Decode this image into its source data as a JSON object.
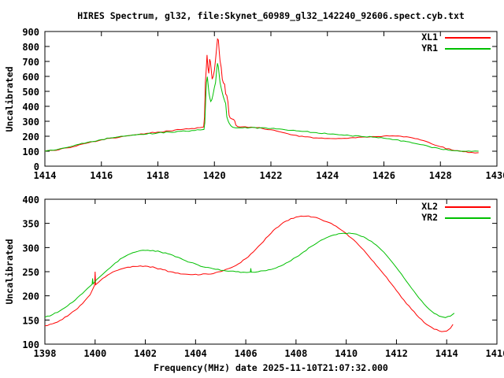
{
  "title": "HIRES Spectrum, gl32, file:Skynet_60989_gl32_142240_92606.spect.cyb.txt",
  "colors": {
    "background": "#ffffff",
    "frame": "#000000",
    "xl": "#ff0000",
    "yr": "#00c000"
  },
  "chart_data": [
    {
      "type": "line",
      "title": "",
      "xlabel": "",
      "ylabel": "Uncalibrated",
      "xlim": [
        1414,
        1430
      ],
      "ylim": [
        0,
        900
      ],
      "xticks": [
        1414,
        1416,
        1418,
        1420,
        1422,
        1424,
        1426,
        1428,
        1430
      ],
      "yticks": [
        0,
        100,
        200,
        300,
        400,
        500,
        600,
        700,
        800,
        900
      ],
      "grid": false,
      "legend_position": "top-right",
      "series": [
        {
          "name": "XL1",
          "color": "#ff0000",
          "points": [
            [
              1414.0,
              100
            ],
            [
              1414.4,
              106
            ],
            [
              1414.8,
              122
            ],
            [
              1415.2,
              142
            ],
            [
              1415.6,
              160
            ],
            [
              1416.0,
              176
            ],
            [
              1416.4,
              189
            ],
            [
              1416.8,
              200
            ],
            [
              1417.2,
              210
            ],
            [
              1417.6,
              219
            ],
            [
              1418.0,
              228
            ],
            [
              1418.4,
              236
            ],
            [
              1418.8,
              244
            ],
            [
              1419.2,
              252
            ],
            [
              1419.5,
              258
            ],
            [
              1419.62,
              262
            ],
            [
              1419.65,
              330
            ],
            [
              1419.68,
              560
            ],
            [
              1419.71,
              640
            ],
            [
              1419.74,
              743
            ],
            [
              1419.77,
              660
            ],
            [
              1419.8,
              620
            ],
            [
              1419.83,
              715
            ],
            [
              1419.86,
              698
            ],
            [
              1419.89,
              640
            ],
            [
              1419.92,
              582
            ],
            [
              1419.96,
              600
            ],
            [
              1420.0,
              642
            ],
            [
              1420.04,
              712
            ],
            [
              1420.08,
              790
            ],
            [
              1420.11,
              850
            ],
            [
              1420.14,
              843
            ],
            [
              1420.17,
              772
            ],
            [
              1420.2,
              705
            ],
            [
              1420.24,
              660
            ],
            [
              1420.28,
              580
            ],
            [
              1420.32,
              556
            ],
            [
              1420.36,
              548
            ],
            [
              1420.4,
              482
            ],
            [
              1420.44,
              472
            ],
            [
              1420.48,
              428
            ],
            [
              1420.52,
              340
            ],
            [
              1420.56,
              322
            ],
            [
              1420.62,
              316
            ],
            [
              1420.68,
              312
            ],
            [
              1420.72,
              302
            ],
            [
              1420.76,
              274
            ],
            [
              1420.82,
              264
            ],
            [
              1421.0,
              263
            ],
            [
              1421.3,
              261
            ],
            [
              1421.6,
              258
            ],
            [
              1422.0,
              243
            ],
            [
              1422.4,
              226
            ],
            [
              1422.8,
              208
            ],
            [
              1423.2,
              196
            ],
            [
              1423.6,
              189
            ],
            [
              1424.0,
              186
            ],
            [
              1424.4,
              186
            ],
            [
              1424.8,
              189
            ],
            [
              1425.2,
              194
            ],
            [
              1425.6,
              198
            ],
            [
              1426.0,
              201
            ],
            [
              1426.4,
              201
            ],
            [
              1426.8,
              197
            ],
            [
              1427.2,
              182
            ],
            [
              1427.6,
              158
            ],
            [
              1428.0,
              130
            ],
            [
              1428.4,
              109
            ],
            [
              1428.8,
              97
            ],
            [
              1429.1,
              92
            ],
            [
              1429.35,
              90
            ]
          ]
        },
        {
          "name": "YR1",
          "color": "#00c000",
          "points": [
            [
              1414.0,
              100
            ],
            [
              1414.4,
              109
            ],
            [
              1414.8,
              126
            ],
            [
              1415.2,
              146
            ],
            [
              1415.6,
              163
            ],
            [
              1416.0,
              178
            ],
            [
              1416.4,
              190
            ],
            [
              1416.8,
              200
            ],
            [
              1417.2,
              208
            ],
            [
              1417.6,
              215
            ],
            [
              1418.0,
              222
            ],
            [
              1418.4,
              228
            ],
            [
              1418.8,
              233
            ],
            [
              1419.2,
              238
            ],
            [
              1419.5,
              242
            ],
            [
              1419.63,
              245
            ],
            [
              1419.66,
              290
            ],
            [
              1419.69,
              430
            ],
            [
              1419.72,
              560
            ],
            [
              1419.75,
              598
            ],
            [
              1419.78,
              540
            ],
            [
              1419.81,
              488
            ],
            [
              1419.84,
              455
            ],
            [
              1419.87,
              432
            ],
            [
              1419.91,
              444
            ],
            [
              1419.95,
              478
            ],
            [
              1420.0,
              528
            ],
            [
              1420.04,
              558
            ],
            [
              1420.08,
              640
            ],
            [
              1420.11,
              688
            ],
            [
              1420.14,
              662
            ],
            [
              1420.17,
              612
            ],
            [
              1420.2,
              560
            ],
            [
              1420.24,
              522
            ],
            [
              1420.28,
              490
            ],
            [
              1420.32,
              462
            ],
            [
              1420.36,
              438
            ],
            [
              1420.4,
              418
            ],
            [
              1420.44,
              330
            ],
            [
              1420.48,
              305
            ],
            [
              1420.52,
              288
            ],
            [
              1420.58,
              270
            ],
            [
              1420.65,
              260
            ],
            [
              1420.75,
              256
            ],
            [
              1421.0,
              256
            ],
            [
              1421.6,
              256
            ],
            [
              1422.0,
              252
            ],
            [
              1422.4,
              247
            ],
            [
              1422.8,
              240
            ],
            [
              1423.2,
              232
            ],
            [
              1423.6,
              224
            ],
            [
              1424.0,
              216
            ],
            [
              1424.4,
              210
            ],
            [
              1424.8,
              204
            ],
            [
              1425.2,
              199
            ],
            [
              1425.6,
              194
            ],
            [
              1426.0,
              187
            ],
            [
              1426.4,
              177
            ],
            [
              1426.8,
              164
            ],
            [
              1427.2,
              148
            ],
            [
              1427.6,
              131
            ],
            [
              1428.0,
              115
            ],
            [
              1428.4,
              105
            ],
            [
              1428.8,
              100
            ],
            [
              1429.1,
              99
            ],
            [
              1429.35,
              100
            ]
          ]
        }
      ]
    },
    {
      "type": "line",
      "title": "",
      "xlabel": "Frequency(MHz) date 2025-11-10T21:07:32.000",
      "ylabel": "Uncalibrated",
      "xlim": [
        1398,
        1416
      ],
      "ylim": [
        100,
        400
      ],
      "xticks": [
        1398,
        1400,
        1402,
        1404,
        1406,
        1408,
        1410,
        1412,
        1414,
        1416
      ],
      "yticks": [
        100,
        150,
        200,
        250,
        300,
        350,
        400
      ],
      "grid": false,
      "legend_position": "top-right",
      "series": [
        {
          "name": "XL2",
          "color": "#ff0000",
          "points": [
            [
              1398.0,
              138
            ],
            [
              1398.3,
              142
            ],
            [
              1398.6,
              149
            ],
            [
              1398.9,
              158
            ],
            [
              1399.2,
              170
            ],
            [
              1399.5,
              184
            ],
            [
              1399.8,
              202
            ],
            [
              1399.98,
              222
            ],
            [
              1400.0,
              250
            ],
            [
              1400.02,
              223
            ],
            [
              1400.3,
              236
            ],
            [
              1400.6,
              246
            ],
            [
              1400.9,
              253
            ],
            [
              1401.2,
              258
            ],
            [
              1401.5,
              261
            ],
            [
              1401.8,
              262
            ],
            [
              1402.1,
              261
            ],
            [
              1402.4,
              258
            ],
            [
              1402.7,
              254
            ],
            [
              1403.0,
              250
            ],
            [
              1403.3,
              247
            ],
            [
              1403.6,
              245
            ],
            [
              1403.9,
              244
            ],
            [
              1404.2,
              244
            ],
            [
              1404.5,
              245
            ],
            [
              1404.8,
              248
            ],
            [
              1405.1,
              252
            ],
            [
              1405.4,
              258
            ],
            [
              1405.7,
              266
            ],
            [
              1406.0,
              277
            ],
            [
              1406.3,
              291
            ],
            [
              1406.6,
              307
            ],
            [
              1406.9,
              324
            ],
            [
              1407.2,
              340
            ],
            [
              1407.5,
              352
            ],
            [
              1407.8,
              360
            ],
            [
              1408.1,
              364
            ],
            [
              1408.4,
              365
            ],
            [
              1408.7,
              363
            ],
            [
              1409.0,
              358
            ],
            [
              1409.3,
              352
            ],
            [
              1409.6,
              344
            ],
            [
              1409.9,
              333
            ],
            [
              1410.2,
              320
            ],
            [
              1410.5,
              305
            ],
            [
              1410.8,
              288
            ],
            [
              1411.1,
              270
            ],
            [
              1411.4,
              251
            ],
            [
              1411.7,
              231
            ],
            [
              1412.0,
              211
            ],
            [
              1412.3,
              191
            ],
            [
              1412.6,
              172
            ],
            [
              1412.9,
              155
            ],
            [
              1413.2,
              141
            ],
            [
              1413.5,
              131
            ],
            [
              1413.8,
              126
            ],
            [
              1414.0,
              127
            ],
            [
              1414.15,
              133
            ],
            [
              1414.25,
              141
            ]
          ]
        },
        {
          "name": "YR2",
          "color": "#00c000",
          "points": [
            [
              1398.0,
              156
            ],
            [
              1398.3,
              161
            ],
            [
              1398.6,
              169
            ],
            [
              1398.9,
              179
            ],
            [
              1399.2,
              191
            ],
            [
              1399.5,
              205
            ],
            [
              1399.8,
              220
            ],
            [
              1399.88,
              224
            ],
            [
              1399.9,
              236
            ],
            [
              1399.92,
              225
            ],
            [
              1400.2,
              240
            ],
            [
              1400.5,
              254
            ],
            [
              1400.8,
              268
            ],
            [
              1401.1,
              279
            ],
            [
              1401.4,
              287
            ],
            [
              1401.7,
              292
            ],
            [
              1402.0,
              294
            ],
            [
              1402.3,
              294
            ],
            [
              1402.6,
              291
            ],
            [
              1402.9,
              287
            ],
            [
              1403.2,
              281
            ],
            [
              1403.5,
              275
            ],
            [
              1403.8,
              269
            ],
            [
              1404.1,
              264
            ],
            [
              1404.4,
              259
            ],
            [
              1404.7,
              256
            ],
            [
              1405.0,
              253
            ],
            [
              1405.3,
              251
            ],
            [
              1405.6,
              250
            ],
            [
              1405.9,
              249
            ],
            [
              1406.18,
              249
            ],
            [
              1406.2,
              257
            ],
            [
              1406.22,
              249
            ],
            [
              1406.5,
              250
            ],
            [
              1406.8,
              252
            ],
            [
              1407.1,
              256
            ],
            [
              1407.4,
              262
            ],
            [
              1407.7,
              270
            ],
            [
              1408.0,
              280
            ],
            [
              1408.3,
              291
            ],
            [
              1408.6,
              302
            ],
            [
              1408.9,
              312
            ],
            [
              1409.2,
              320
            ],
            [
              1409.5,
              326
            ],
            [
              1409.8,
              329
            ],
            [
              1410.1,
              330
            ],
            [
              1410.4,
              328
            ],
            [
              1410.7,
              322
            ],
            [
              1411.0,
              313
            ],
            [
              1411.3,
              300
            ],
            [
              1411.6,
              284
            ],
            [
              1411.9,
              265
            ],
            [
              1412.2,
              245
            ],
            [
              1412.5,
              223
            ],
            [
              1412.8,
              202
            ],
            [
              1413.1,
              183
            ],
            [
              1413.4,
              168
            ],
            [
              1413.7,
              158
            ],
            [
              1413.95,
              155
            ],
            [
              1414.15,
              158
            ],
            [
              1414.3,
              164
            ]
          ]
        }
      ]
    }
  ]
}
